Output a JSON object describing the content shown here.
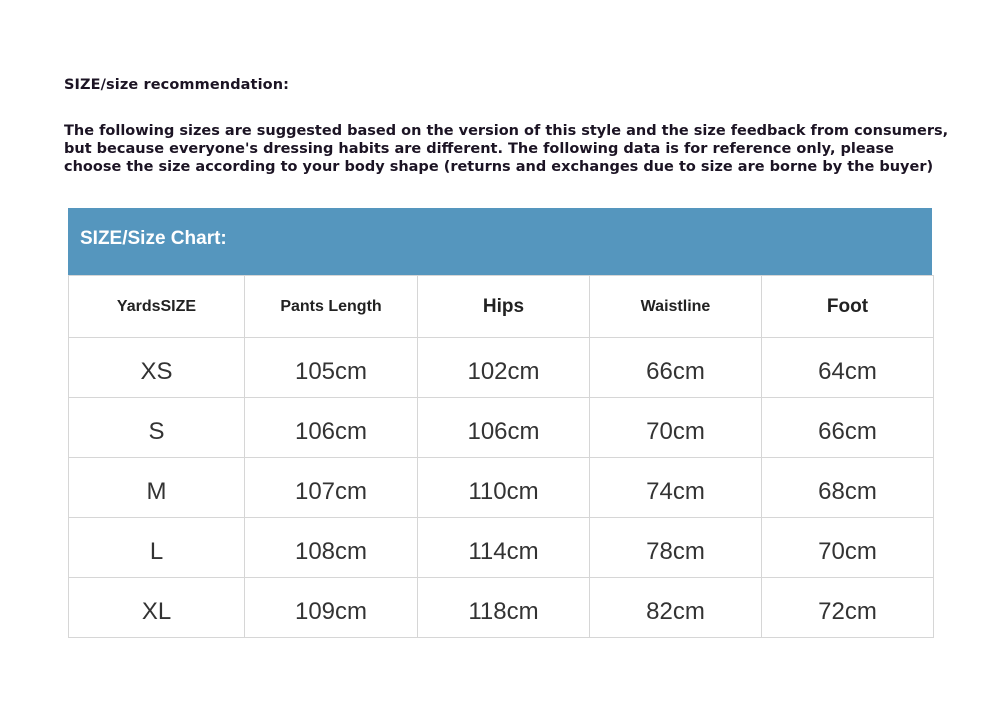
{
  "title": "SIZE/size recommendation:",
  "intro_lines": [
    "The following sizes are suggested based on the version of this style and the size feedback from consumers,",
    "but because everyone's dressing habits are different. The following data is for reference only, please",
    "choose the size according to your body shape (returns and exchanges due to size are borne by the buyer)"
  ],
  "chart_title": "SIZE/Size Chart:",
  "colors": {
    "header_band": "#5596be"
  },
  "table": {
    "headers": [
      "YardsSIZE",
      "Pants Length",
      "Hips",
      "Waistline",
      "Foot"
    ],
    "rows": [
      [
        "XS",
        "105cm",
        "102cm",
        "66cm",
        "64cm"
      ],
      [
        "S",
        "106cm",
        "106cm",
        "70cm",
        "66cm"
      ],
      [
        "M",
        "107cm",
        "110cm",
        "74cm",
        "68cm"
      ],
      [
        "L",
        "108cm",
        "114cm",
        "78cm",
        "70cm"
      ],
      [
        "XL",
        "109cm",
        "118cm",
        "82cm",
        "72cm"
      ]
    ]
  }
}
